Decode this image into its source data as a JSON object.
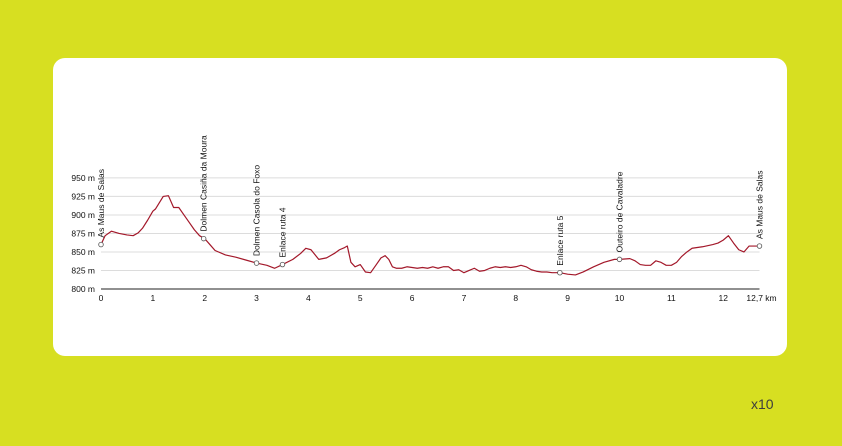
{
  "zoom_label": "x10",
  "colors": {
    "background": "#d7df21",
    "card": "#ffffff",
    "profile_line": "#a3182a",
    "grid": "#dcdcdc",
    "axis": "#222222",
    "text": "#111111"
  },
  "chart_data": {
    "type": "line",
    "title": "",
    "xlabel": "",
    "ylabel": "",
    "x_unit": "km",
    "y_unit": "m",
    "xlim": [
      0,
      12.7
    ],
    "ylim": [
      800,
      960
    ],
    "x_ticks": [
      0,
      1,
      2,
      3,
      4,
      5,
      6,
      7,
      8,
      9,
      10,
      11,
      12
    ],
    "x_end_label": "12,7 km",
    "y_ticks": [
      800,
      825,
      850,
      875,
      900,
      925,
      950
    ],
    "y_tick_labels": [
      "800 m",
      "825 m",
      "850 m",
      "875 m",
      "900 m",
      "925 m",
      "950 m"
    ],
    "grid": true,
    "series": [
      {
        "x": [
          0,
          0.08,
          0.2,
          0.35,
          0.5,
          0.62,
          0.72,
          0.8,
          0.9,
          1.0,
          1.05,
          1.2,
          1.3,
          1.4,
          1.5,
          1.6,
          1.7,
          1.8,
          1.9,
          2.0,
          2.1,
          2.2,
          2.4,
          2.6,
          2.8,
          3.0,
          3.2,
          3.35,
          3.5,
          3.7,
          3.85,
          3.95,
          4.05,
          4.2,
          4.35,
          4.5,
          4.6,
          4.7,
          4.75,
          4.82,
          4.9,
          5.0,
          5.1,
          5.2,
          5.3,
          5.4,
          5.48,
          5.55,
          5.62,
          5.7,
          5.8,
          5.9,
          6.0,
          6.1,
          6.2,
          6.3,
          6.4,
          6.5,
          6.6,
          6.7,
          6.8,
          6.9,
          7.0,
          7.1,
          7.2,
          7.3,
          7.4,
          7.5,
          7.6,
          7.7,
          7.8,
          7.9,
          8.0,
          8.1,
          8.2,
          8.3,
          8.4,
          8.5,
          8.6,
          8.7,
          8.85,
          9.0,
          9.15,
          9.3,
          9.5,
          9.7,
          9.9,
          10.0,
          10.2,
          10.3,
          10.4,
          10.5,
          10.6,
          10.7,
          10.8,
          10.9,
          11.0,
          11.1,
          11.2,
          11.3,
          11.4,
          11.6,
          11.8,
          11.9,
          12.0,
          12.1,
          12.2,
          12.3,
          12.4,
          12.5,
          12.6,
          12.7
        ],
        "y": [
          860,
          872,
          878,
          875,
          873,
          872,
          876,
          882,
          893,
          905,
          908,
          925,
          926,
          910,
          910,
          900,
          890,
          880,
          872,
          868,
          860,
          852,
          846,
          843,
          839,
          835,
          832,
          828,
          833,
          840,
          848,
          855,
          853,
          840,
          842,
          848,
          853,
          856,
          858,
          836,
          830,
          833,
          823,
          822,
          832,
          842,
          845,
          840,
          830,
          828,
          828,
          830,
          829,
          828,
          829,
          828,
          830,
          828,
          830,
          830,
          825,
          826,
          822,
          825,
          828,
          824,
          825,
          828,
          830,
          829,
          830,
          829,
          830,
          832,
          830,
          826,
          824,
          823,
          823,
          822,
          822,
          820,
          819,
          823,
          830,
          836,
          840,
          840,
          841,
          838,
          833,
          832,
          832,
          838,
          836,
          832,
          832,
          836,
          844,
          850,
          855,
          857,
          860,
          862,
          866,
          872,
          862,
          853,
          850,
          858,
          858,
          858
        ]
      }
    ],
    "waypoints": [
      {
        "name": "As Maus de Salas",
        "x": 0,
        "y": 860
      },
      {
        "name": "Dolmen Casiña da Moura",
        "x": 1.98,
        "y": 868
      },
      {
        "name": "Dolmen Casola do Foxo",
        "x": 3.0,
        "y": 835
      },
      {
        "name": "Enlace ruta 4",
        "x": 3.5,
        "y": 833
      },
      {
        "name": "Enlace ruta 5",
        "x": 8.85,
        "y": 822
      },
      {
        "name": "Outeiro de Cavaladre",
        "x": 10.0,
        "y": 840
      },
      {
        "name": "As Maus de Salas",
        "x": 12.7,
        "y": 858
      }
    ]
  }
}
